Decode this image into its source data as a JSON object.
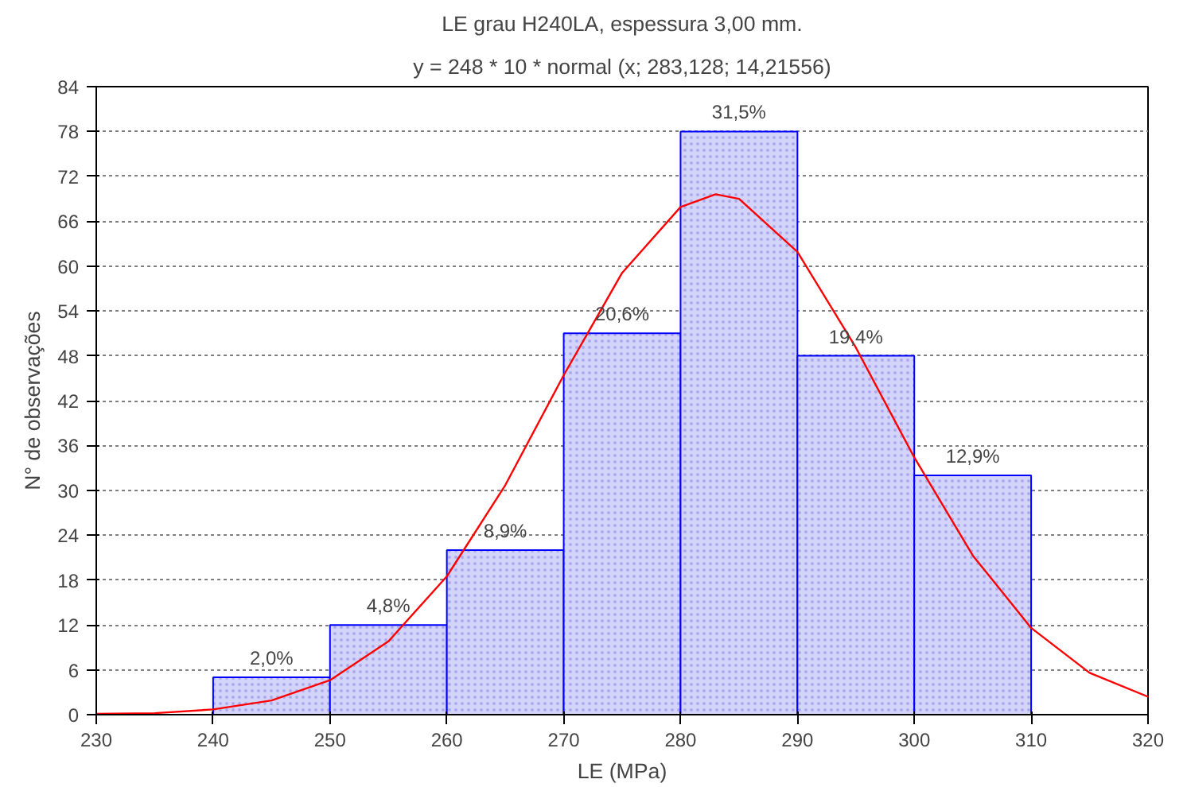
{
  "chart_data": {
    "type": "histogram",
    "title": "LE grau H240LA, espessura 3,00 mm.",
    "subtitle": "y = 248 * 10 * normal (x; 283,128; 14,21556)",
    "xlabel": "LE (MPa)",
    "ylabel": "N° de observações",
    "bins": [
      230,
      240,
      250,
      260,
      270,
      280,
      290,
      300,
      310,
      320
    ],
    "values": [
      0,
      5,
      12,
      22,
      51,
      78,
      48,
      32,
      0
    ],
    "annotations": [
      {
        "text": "2,0%",
        "x": 245,
        "y": 5
      },
      {
        "text": "4,8%",
        "x": 255,
        "y": 12
      },
      {
        "text": "8,9%",
        "x": 265,
        "y": 22
      },
      {
        "text": "20,6%",
        "x": 275,
        "y": 51
      },
      {
        "text": "31,5%",
        "x": 285,
        "y": 78
      },
      {
        "text": "19,4%",
        "x": 295,
        "y": 48
      },
      {
        "text": "12,9%",
        "x": 305,
        "y": 32
      }
    ],
    "color": "#d4d4fa",
    "series": [
      {
        "type": "line",
        "color": "#ff0000",
        "x": [
          230,
          235,
          240,
          245,
          250,
          255,
          260,
          265,
          270,
          275,
          280,
          283,
          285,
          290,
          295,
          300,
          305,
          310,
          315,
          320
        ],
        "values": [
          0.1,
          0.2,
          0.7,
          1.9,
          4.6,
          9.8,
          18.5,
          30.7,
          45.4,
          59.1,
          67.9,
          69.6,
          69.0,
          61.9,
          49.1,
          34.4,
          21.3,
          11.6,
          5.6,
          2.4
        ]
      }
    ],
    "xlim": [
      230,
      320
    ],
    "xticks": [
      230,
      240,
      250,
      260,
      270,
      280,
      290,
      300,
      310,
      320
    ],
    "ylim": [
      0,
      84
    ],
    "yticks": [
      0,
      6,
      12,
      18,
      24,
      30,
      36,
      42,
      48,
      54,
      60,
      66,
      72,
      78,
      84
    ],
    "grid": "y"
  }
}
